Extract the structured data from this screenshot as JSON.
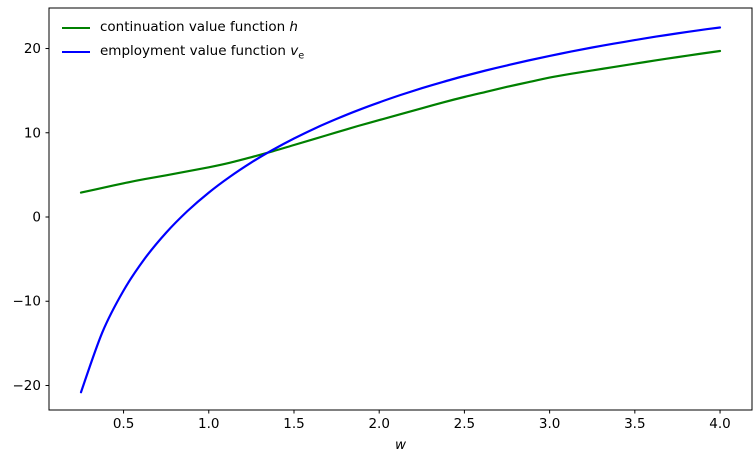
{
  "chart_data": {
    "type": "line",
    "title": "",
    "xlabel": "w",
    "ylabel": "",
    "grid": false,
    "legend_position": "upper-left",
    "xlim": [
      0.0625,
      4.1875
    ],
    "ylim": [
      -22.91,
      24.81
    ],
    "xticks": {
      "values": [
        0.5,
        1.0,
        1.5,
        2.0,
        2.5,
        3.0,
        3.5,
        4.0
      ],
      "labels": [
        "0.5",
        "1.0",
        "1.5",
        "2.0",
        "2.5",
        "3.0",
        "3.5",
        "4.0"
      ]
    },
    "yticks": {
      "values": [
        -20,
        -10,
        0,
        10,
        20
      ],
      "labels": [
        "−20",
        "−10",
        "0",
        "10",
        "20"
      ]
    },
    "x": [
      0.25,
      0.375,
      0.5,
      0.625,
      0.75,
      0.875,
      1.0,
      1.125,
      1.25,
      1.375,
      1.5,
      1.625,
      1.75,
      1.875,
      2.0,
      2.125,
      2.25,
      2.375,
      2.5,
      2.625,
      2.75,
      2.875,
      3.0,
      3.125,
      3.25,
      3.375,
      3.5,
      3.625,
      3.75,
      3.875,
      4.0
    ],
    "series": [
      {
        "name": "continuation value function h",
        "color": "#008000",
        "linewidth": 2.2,
        "values": [
          2.9,
          3.45,
          4.0,
          4.5,
          4.95,
          5.42,
          5.9,
          6.45,
          7.1,
          7.8,
          8.55,
          9.3,
          10.05,
          10.8,
          11.5,
          12.2,
          12.9,
          13.6,
          14.25,
          14.85,
          15.45,
          16.0,
          16.55,
          17.0,
          17.4,
          17.8,
          18.2,
          18.6,
          18.98,
          19.35,
          19.7
        ]
      },
      {
        "name": "employment value function v_e",
        "color": "#0000ff",
        "linewidth": 2.2,
        "values": [
          -20.8,
          -13.7,
          -8.72,
          -4.92,
          -1.85,
          0.71,
          2.9,
          4.8,
          6.48,
          7.97,
          9.32,
          10.54,
          11.65,
          12.67,
          13.61,
          14.48,
          15.29,
          16.04,
          16.74,
          17.39,
          18.0,
          18.58,
          19.12,
          19.63,
          20.12,
          20.57,
          21.0,
          21.41,
          21.79,
          22.16,
          22.5
        ]
      }
    ],
    "legend": {
      "items": [
        {
          "text": "continuation value function ",
          "math": "h",
          "sub": ""
        },
        {
          "text": "employment value function ",
          "math": "v",
          "sub": "e"
        }
      ]
    }
  }
}
